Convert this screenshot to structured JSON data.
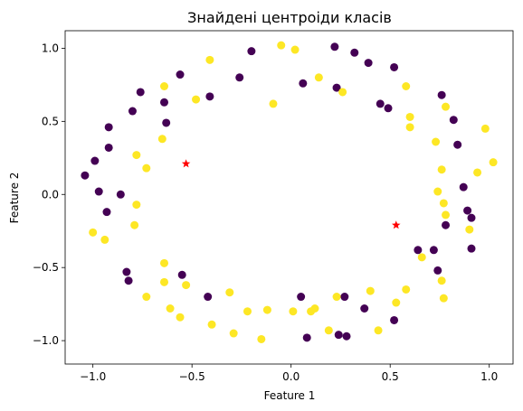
{
  "chart_data": {
    "type": "scatter",
    "title": "Знайдені центроіди класів",
    "xlabel": "Feature 1",
    "ylabel": "Feature 2",
    "xlim": [
      -1.14,
      1.12
    ],
    "ylim": [
      -1.16,
      1.12
    ],
    "xticks": [
      -1.0,
      -0.5,
      0.0,
      0.5,
      1.0
    ],
    "xtick_labels": [
      "−1.0",
      "−0.5",
      "0.0",
      "0.5",
      "1.0"
    ],
    "yticks": [
      -1.0,
      -0.5,
      0.0,
      0.5,
      1.0
    ],
    "ytick_labels": [
      "−1.0",
      "−0.5",
      "0.0",
      "0.5",
      "1.0"
    ],
    "grid": false,
    "colors": {
      "class_0": "#440154",
      "class_1": "#fde725",
      "centroid": "#ff0000"
    },
    "series": [
      {
        "class": 0,
        "marker": "circle",
        "points": [
          [
            -1.04,
            0.13
          ],
          [
            -0.99,
            0.23
          ],
          [
            -0.97,
            0.02
          ],
          [
            -0.92,
            0.32
          ],
          [
            -0.92,
            0.46
          ],
          [
            -0.86,
            0.0
          ],
          [
            -0.93,
            -0.12
          ],
          [
            -0.83,
            -0.53
          ],
          [
            -0.82,
            -0.59
          ],
          [
            -0.8,
            0.57
          ],
          [
            -0.76,
            0.7
          ],
          [
            -0.63,
            0.49
          ],
          [
            -0.64,
            0.63
          ],
          [
            -0.56,
            0.82
          ],
          [
            -0.55,
            -0.55
          ],
          [
            -0.42,
            -0.7
          ],
          [
            -0.41,
            0.67
          ],
          [
            -0.26,
            0.8
          ],
          [
            -0.2,
            0.98
          ],
          [
            0.06,
            0.76
          ],
          [
            0.05,
            -0.7
          ],
          [
            0.08,
            -0.98
          ],
          [
            0.22,
            1.01
          ],
          [
            0.23,
            0.73
          ],
          [
            0.24,
            -0.96
          ],
          [
            0.28,
            -0.97
          ],
          [
            0.27,
            -0.7
          ],
          [
            0.32,
            0.97
          ],
          [
            0.39,
            0.9
          ],
          [
            0.45,
            0.62
          ],
          [
            0.49,
            0.59
          ],
          [
            0.52,
            0.87
          ],
          [
            0.37,
            -0.78
          ],
          [
            0.52,
            -0.86
          ],
          [
            0.76,
            0.68
          ],
          [
            0.74,
            -0.52
          ],
          [
            0.82,
            0.51
          ],
          [
            0.84,
            0.34
          ],
          [
            0.87,
            0.05
          ],
          [
            0.89,
            -0.11
          ],
          [
            0.91,
            -0.16
          ],
          [
            0.91,
            -0.37
          ],
          [
            0.78,
            -0.21
          ],
          [
            0.72,
            -0.38
          ],
          [
            0.64,
            -0.38
          ]
        ]
      },
      {
        "class": 1,
        "marker": "circle",
        "points": [
          [
            -1.0,
            -0.26
          ],
          [
            -0.94,
            -0.31
          ],
          [
            -0.79,
            -0.21
          ],
          [
            -0.78,
            -0.07
          ],
          [
            -0.73,
            0.18
          ],
          [
            -0.65,
            0.38
          ],
          [
            -0.78,
            0.27
          ],
          [
            -0.64,
            0.74
          ],
          [
            -0.48,
            0.65
          ],
          [
            -0.41,
            0.92
          ],
          [
            -0.64,
            -0.47
          ],
          [
            -0.64,
            -0.6
          ],
          [
            -0.73,
            -0.7
          ],
          [
            -0.61,
            -0.78
          ],
          [
            -0.56,
            -0.84
          ],
          [
            -0.53,
            -0.62
          ],
          [
            -0.4,
            -0.89
          ],
          [
            -0.31,
            -0.67
          ],
          [
            -0.29,
            -0.95
          ],
          [
            -0.22,
            -0.8
          ],
          [
            -0.15,
            -0.99
          ],
          [
            -0.12,
            -0.79
          ],
          [
            -0.09,
            0.62
          ],
          [
            -0.05,
            1.02
          ],
          [
            0.01,
            -0.8
          ],
          [
            0.1,
            -0.8
          ],
          [
            0.12,
            -0.78
          ],
          [
            0.19,
            -0.93
          ],
          [
            0.23,
            -0.7
          ],
          [
            0.02,
            0.99
          ],
          [
            0.14,
            0.8
          ],
          [
            0.26,
            0.7
          ],
          [
            0.4,
            -0.66
          ],
          [
            0.44,
            -0.93
          ],
          [
            0.53,
            -0.74
          ],
          [
            0.58,
            -0.65
          ],
          [
            0.6,
            0.53
          ],
          [
            0.6,
            0.46
          ],
          [
            0.58,
            0.74
          ],
          [
            0.66,
            -0.43
          ],
          [
            0.73,
            0.36
          ],
          [
            0.76,
            0.17
          ],
          [
            0.74,
            0.02
          ],
          [
            0.77,
            -0.06
          ],
          [
            0.78,
            -0.14
          ],
          [
            0.76,
            -0.59
          ],
          [
            0.77,
            -0.71
          ],
          [
            0.78,
            0.6
          ],
          [
            0.9,
            -0.24
          ],
          [
            0.94,
            0.15
          ],
          [
            1.02,
            0.22
          ],
          [
            0.98,
            0.45
          ]
        ]
      },
      {
        "class": "centroid",
        "marker": "star",
        "points": [
          [
            -0.53,
            0.21
          ],
          [
            0.53,
            -0.21
          ]
        ]
      }
    ]
  }
}
